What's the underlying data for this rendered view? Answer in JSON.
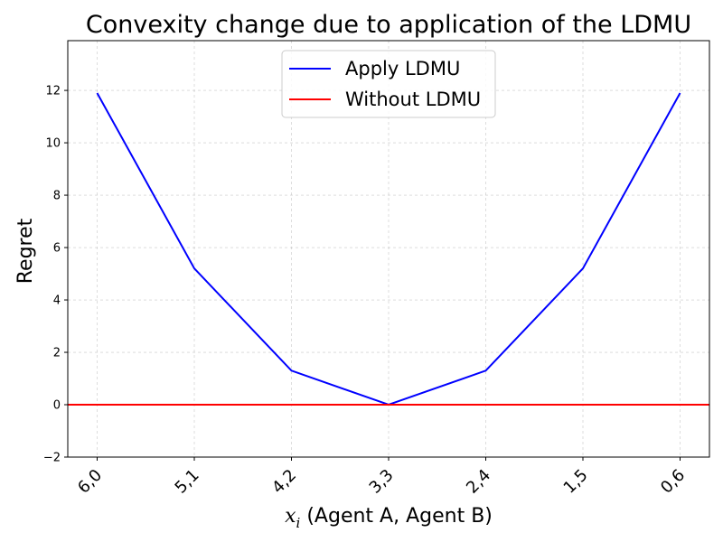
{
  "chart_data": {
    "type": "line",
    "title": "Convexity change due to application of the LDMU",
    "xlabel_var": "x",
    "xlabel_sub": "i",
    "xlabel_rest": " (Agent A, Agent B)",
    "ylabel": "Regret",
    "categories": [
      "6,0",
      "5,1",
      "4,2",
      "3,3",
      "2,4",
      "1,5",
      "0,6"
    ],
    "ylim": [
      -2,
      13.9
    ],
    "yticks": [
      -2,
      0,
      2,
      4,
      6,
      8,
      10,
      12
    ],
    "grid": true,
    "legend_position": "top-center",
    "series": [
      {
        "name": "Apply LDMU",
        "color": "#0000ff",
        "kind": "line",
        "values": [
          11.9,
          5.2,
          1.3,
          0.0,
          1.3,
          5.2,
          11.9
        ]
      },
      {
        "name": "Without LDMU",
        "color": "#ff0000",
        "kind": "hline",
        "value": 0
      }
    ]
  }
}
